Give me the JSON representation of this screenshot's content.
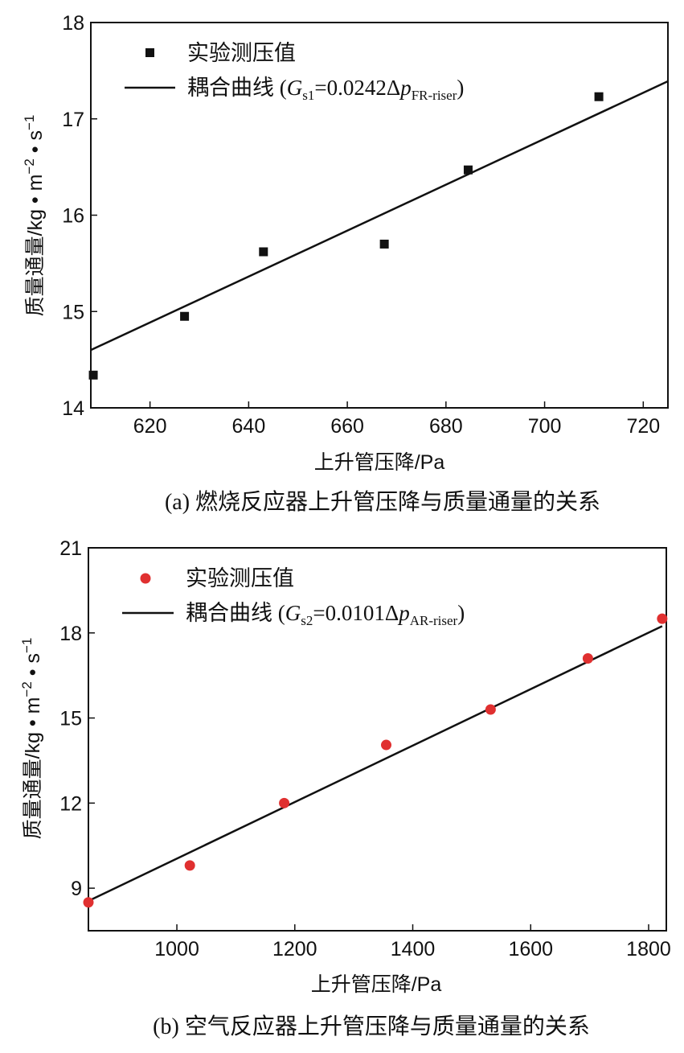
{
  "chart_data": [
    {
      "type": "scatter",
      "xlabel": "上升管压降/Pa",
      "ylabel_prefix": "质量通量/kg • m",
      "ylabel_exp1": "−2",
      "ylabel_mid": " • s",
      "ylabel_exp2": "−1",
      "caption": "(a) 燃烧反应器上升管压降与质量通量的关系",
      "xlim": [
        608,
        725
      ],
      "ylim": [
        14,
        18
      ],
      "xticks": [
        620,
        640,
        660,
        680,
        700,
        720
      ],
      "yticks": [
        14,
        15,
        16,
        17,
        18
      ],
      "marker": "square",
      "marker_color": "#111111",
      "line_color": "#111111",
      "legend_points_label": "实验测压值",
      "legend_fit_prefix": "耦合曲线 (",
      "legend_fit_G": "G",
      "legend_fit_sub": "s1",
      "legend_fit_eq": "=0.0242Δ",
      "legend_fit_p": "p",
      "legend_fit_sub2": "FR-riser",
      "legend_fit_suffix": ")",
      "points": [
        {
          "x": 608.5,
          "y": 14.34
        },
        {
          "x": 627,
          "y": 14.95
        },
        {
          "x": 643,
          "y": 15.62
        },
        {
          "x": 667.5,
          "y": 15.7
        },
        {
          "x": 684.5,
          "y": 16.47
        },
        {
          "x": 711,
          "y": 17.23
        }
      ],
      "fit": {
        "x": [
          608,
          725
        ],
        "y": [
          14.6,
          17.39
        ]
      }
    },
    {
      "type": "scatter",
      "xlabel": "上升管压降/Pa",
      "ylabel_prefix": "质量通量/kg • m",
      "ylabel_exp1": "−2",
      "ylabel_mid": " • s",
      "ylabel_exp2": "−1",
      "caption": "(b) 空气反应器上升管压降与质量通量的关系",
      "xlim": [
        850,
        1830
      ],
      "ylim": [
        7.5,
        21
      ],
      "xticks": [
        1000,
        1200,
        1400,
        1600,
        1800
      ],
      "yticks": [
        9,
        12,
        15,
        18,
        21
      ],
      "marker": "circle",
      "marker_color": "#e03030",
      "line_color": "#111111",
      "legend_points_label": "实验测压值",
      "legend_fit_prefix": "耦合曲线 (",
      "legend_fit_G": "G",
      "legend_fit_sub": "s2",
      "legend_fit_eq": "=0.0101Δ",
      "legend_fit_p": "p",
      "legend_fit_sub2": "AR-riser",
      "legend_fit_suffix": ")",
      "points": [
        {
          "x": 850,
          "y": 8.5
        },
        {
          "x": 1022,
          "y": 9.8
        },
        {
          "x": 1182,
          "y": 12.0
        },
        {
          "x": 1355,
          "y": 14.05
        },
        {
          "x": 1532,
          "y": 15.3
        },
        {
          "x": 1697,
          "y": 17.1
        },
        {
          "x": 1823,
          "y": 18.5
        }
      ],
      "fit": {
        "x": [
          850,
          1823
        ],
        "y": [
          8.55,
          18.24
        ]
      }
    }
  ]
}
